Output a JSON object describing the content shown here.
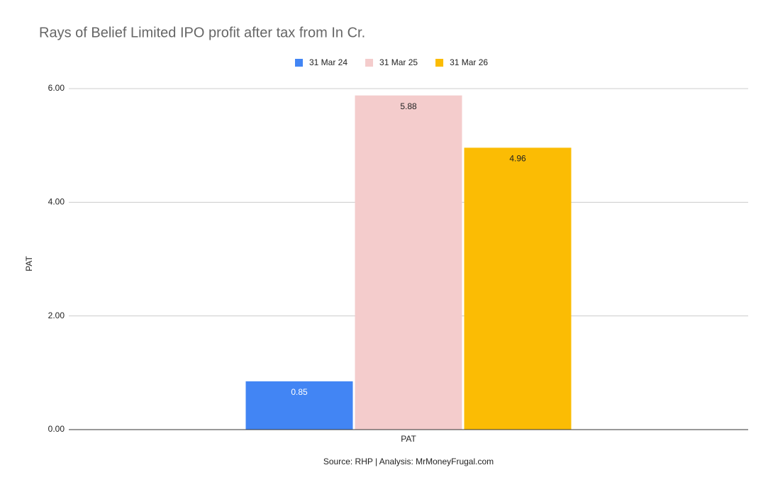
{
  "chart_data": {
    "type": "bar",
    "title": "Rays of Belief Limited IPO profit after tax from In Cr.",
    "y_label": "PAT",
    "source": "Source: RHP | Analysis: MrMoneyFrugal.com",
    "categories": [
      "PAT"
    ],
    "series": [
      {
        "name": "31 Mar 24",
        "color": "#4285f4",
        "values": [
          0.85
        ]
      },
      {
        "name": "31 Mar 25",
        "color": "#f4cccc",
        "values": [
          5.88
        ]
      },
      {
        "name": "31 Mar 26",
        "color": "#fbbc04",
        "values": [
          4.96
        ]
      }
    ],
    "ylim": [
      0,
      6
    ],
    "yticks": [
      {
        "value": 0,
        "label": "0.00"
      },
      {
        "value": 2,
        "label": "2.00"
      },
      {
        "value": 4,
        "label": "4.00"
      },
      {
        "value": 6,
        "label": "6.00"
      }
    ],
    "grid": true,
    "legend": "top"
  }
}
